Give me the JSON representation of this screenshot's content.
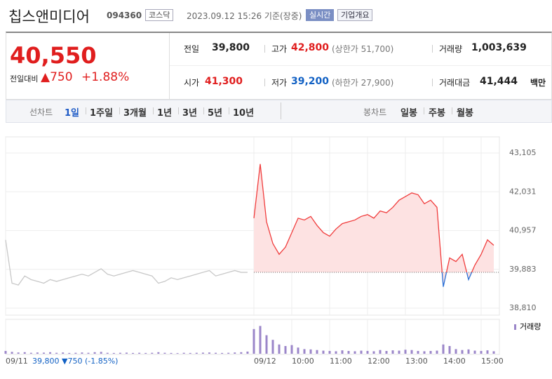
{
  "header": {
    "name": "칩스앤미디어",
    "code": "094360",
    "market": "코스닥",
    "timestamp": "2023.09.12 15:26 기준(장중)",
    "buttons": [
      "실시간",
      "기업개요"
    ]
  },
  "quote": {
    "price": "40,550",
    "change_label": "전일대비",
    "change": "▲750",
    "rate": "+1.88%",
    "cells": [
      [
        "전일",
        "39,800"
      ],
      [
        "고가",
        "42,800",
        "(상한가 51,700)"
      ],
      [
        "거래량",
        "1,003,639"
      ],
      [
        "시가",
        "41,300"
      ],
      [
        "저가",
        "39,200",
        "(하한가 27,900)"
      ],
      [
        "거래대금",
        "41,444",
        "백만"
      ]
    ]
  },
  "tabs": {
    "line_label": "선차트",
    "line_tabs": [
      "1일",
      "1주일",
      "3개월",
      "1년",
      "3년",
      "5년",
      "10년"
    ],
    "candle_label": "봉차트",
    "candle_tabs": [
      "일봉",
      "주봉",
      "월봉"
    ]
  },
  "footer": {
    "close": "39,800",
    "change": "▼750",
    "rate": "(-1.85%)"
  },
  "chart_data": {
    "type": "line",
    "categories": [
      "09/11",
      null,
      null,
      null,
      null,
      null,
      null,
      null,
      null,
      null,
      null,
      null,
      null,
      null,
      null,
      null,
      null,
      null,
      null,
      null,
      null,
      null,
      null,
      null,
      null,
      null,
      null,
      null,
      null,
      null,
      null,
      null,
      null,
      null,
      null,
      null,
      null,
      null,
      null,
      "09/12",
      null,
      null,
      null,
      null,
      null,
      "10:00",
      null,
      null,
      null,
      null,
      null,
      "11:00",
      null,
      null,
      null,
      null,
      null,
      "12:00",
      null,
      null,
      null,
      null,
      null,
      "13:00",
      null,
      null,
      null,
      null,
      null,
      "14:00",
      null,
      null,
      null,
      null,
      null,
      "15:00",
      null,
      null
    ],
    "series": [
      {
        "color": "#c8c8c8",
        "values": [
          40700,
          39500,
          39450,
          39700,
          39600,
          39550,
          39500,
          39600,
          39550,
          39600,
          39650,
          39700,
          39750,
          39700,
          39800,
          39900,
          39750,
          39700,
          39750,
          39800,
          39850,
          39800,
          39750,
          39700,
          39500,
          39550,
          39650,
          39600,
          39650,
          39700,
          39750,
          39800,
          39850,
          39700,
          39750,
          39800,
          39850,
          39800,
          39800,
          null,
          null,
          null,
          null,
          null,
          null,
          null,
          null,
          null,
          null,
          null,
          null,
          null,
          null,
          null,
          null,
          null,
          null,
          null,
          null,
          null,
          null,
          null,
          null,
          null,
          null,
          null,
          null,
          null,
          null,
          null,
          null,
          null,
          null,
          null,
          null,
          null,
          null,
          null
        ]
      },
      {
        "color": "#f03c3c",
        "values": [
          null,
          null,
          null,
          null,
          null,
          null,
          null,
          null,
          null,
          null,
          null,
          null,
          null,
          null,
          null,
          null,
          null,
          null,
          null,
          null,
          null,
          null,
          null,
          null,
          null,
          null,
          null,
          null,
          null,
          null,
          null,
          null,
          null,
          null,
          null,
          null,
          null,
          null,
          null,
          41300,
          42800,
          41200,
          40600,
          40300,
          40500,
          40900,
          41300,
          41250,
          41350,
          41100,
          40900,
          40800,
          41000,
          41150,
          41200,
          41250,
          41350,
          41400,
          41300,
          41500,
          41450,
          41600,
          41800,
          41900,
          42000,
          41950,
          41700,
          41800,
          41600,
          39400,
          40200,
          40100,
          40300,
          39600,
          40000,
          40300,
          40700,
          40550
        ]
      },
      {
        "name": "거래량",
        "color": "#9b86c9",
        "axis": "y2",
        "values": [
          9000,
          6000,
          4000,
          5000,
          3000,
          4000,
          3500,
          5000,
          3000,
          4000,
          2500,
          3000,
          4000,
          3000,
          5000,
          6000,
          3000,
          2500,
          3000,
          3500,
          2500,
          3000,
          2500,
          3000,
          5000,
          3000,
          2500,
          2000,
          3000,
          2500,
          3000,
          3500,
          4000,
          3000,
          2500,
          3000,
          4000,
          5000,
          7000,
          80000,
          90000,
          60000,
          45000,
          30000,
          25000,
          28000,
          20000,
          15000,
          14000,
          12000,
          10000,
          9000,
          8000,
          11000,
          9000,
          8000,
          10000,
          9000,
          8000,
          12000,
          9000,
          11000,
          10000,
          13000,
          12000,
          9000,
          8000,
          9000,
          10000,
          30000,
          25000,
          15000,
          12000,
          14000,
          10000,
          9000,
          11000,
          8000
        ]
      }
    ],
    "prev_close": 39800,
    "ylim": [
      38810,
      43105
    ],
    "yticks": [
      {
        "value": 38810,
        "label": "38,810"
      },
      {
        "value": 39883,
        "label": "39,883"
      },
      {
        "value": 40957,
        "label": "40,957"
      },
      {
        "value": 42031,
        "label": "42,031"
      },
      {
        "value": 43105,
        "label": "43,105"
      }
    ],
    "y2lim": [
      0,
      100000
    ],
    "grid": true
  }
}
